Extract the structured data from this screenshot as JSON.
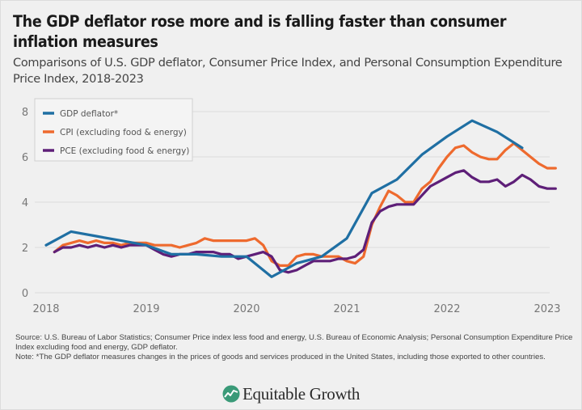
{
  "header": {
    "title": "The GDP deflator rose more and is falling faster than consumer inflation measures",
    "subtitle": "Comparisons of U.S. GDP deflator, Consumer Price Index, and Personal Consumption Expenditure Price Index, 2018-2023"
  },
  "footer": {
    "source": "Source: U.S. Bureau of Labor Statistics; Consumer Price index less food and energy, U.S. Bureau of Economic Analysis; Personal Consumption Expenditure Price Index excluding food and energy, GDP deflator.",
    "note": "Note: *The GDP deflator measures changes in the prices of goods and services produced in the United States, including those exported to other countries.",
    "logo_text": "Equitable Growth",
    "logo_color": "#3a9a78"
  },
  "chart_data": {
    "type": "line",
    "title": "The GDP deflator rose more and is falling faster than consumer inflation measures",
    "subtitle": "Comparisons of U.S. GDP deflator, Consumer Price Index, and Personal Consumption Expenditure Price Index, 2018-2023",
    "xlabel": "",
    "ylabel": "",
    "xlim": [
      2018,
      2023
    ],
    "ylim": [
      0,
      8
    ],
    "xticks": [
      2018,
      2019,
      2020,
      2021,
      2022,
      2023
    ],
    "xtick_labels": [
      "2018",
      "2019",
      "2020",
      "2021",
      "2022",
      "2023"
    ],
    "yticks": [
      0,
      2,
      4,
      6,
      8
    ],
    "ytick_labels": [
      "0",
      "2",
      "4",
      "6",
      "8"
    ],
    "grid": "horizontal",
    "legend_position": "top-left",
    "series": [
      {
        "name": "GDP deflator*",
        "color": "#1f6fa3",
        "x": [
          2018.0,
          2018.25,
          2018.5,
          2018.75,
          2019.0,
          2019.25,
          2019.5,
          2019.75,
          2020.0,
          2020.25,
          2020.5,
          2020.75,
          2021.0,
          2021.25,
          2021.5,
          2021.75,
          2022.0,
          2022.25,
          2022.5,
          2022.75
        ],
        "values": [
          2.1,
          2.7,
          2.5,
          2.3,
          2.1,
          1.7,
          1.7,
          1.6,
          1.6,
          0.7,
          1.3,
          1.6,
          2.4,
          4.4,
          5.0,
          6.1,
          6.9,
          7.6,
          7.1,
          6.4
        ]
      },
      {
        "name": "CPI (excluding food & energy)",
        "color": "#ee6a2e",
        "x": [
          2018.083,
          2018.167,
          2018.25,
          2018.333,
          2018.417,
          2018.5,
          2018.583,
          2018.667,
          2018.75,
          2018.833,
          2018.917,
          2019.0,
          2019.083,
          2019.167,
          2019.25,
          2019.333,
          2019.417,
          2019.5,
          2019.583,
          2019.667,
          2019.75,
          2019.833,
          2019.917,
          2020.0,
          2020.083,
          2020.167,
          2020.25,
          2020.333,
          2020.417,
          2020.5,
          2020.583,
          2020.667,
          2020.75,
          2020.833,
          2020.917,
          2021.0,
          2021.083,
          2021.167,
          2021.25,
          2021.333,
          2021.417,
          2021.5,
          2021.583,
          2021.667,
          2021.75,
          2021.833,
          2021.917,
          2022.0,
          2022.083,
          2022.167,
          2022.25,
          2022.333,
          2022.417,
          2022.5,
          2022.583,
          2022.667,
          2022.75,
          2022.833,
          2022.917,
          2023.0,
          2023.083
        ],
        "values": [
          1.8,
          2.1,
          2.2,
          2.3,
          2.2,
          2.3,
          2.2,
          2.2,
          2.1,
          2.2,
          2.2,
          2.2,
          2.1,
          2.1,
          2.1,
          2.0,
          2.1,
          2.2,
          2.4,
          2.3,
          2.3,
          2.3,
          2.3,
          2.3,
          2.4,
          2.1,
          1.4,
          1.2,
          1.2,
          1.6,
          1.7,
          1.7,
          1.6,
          1.6,
          1.6,
          1.4,
          1.3,
          1.6,
          3.0,
          3.8,
          4.5,
          4.3,
          4.0,
          4.0,
          4.6,
          4.9,
          5.5,
          6.0,
          6.4,
          6.5,
          6.2,
          6.0,
          5.9,
          5.9,
          6.3,
          6.6,
          6.3,
          6.0,
          5.7,
          5.5,
          5.5
        ]
      },
      {
        "name": "PCE (excluding food & energy)",
        "color": "#5e1f78",
        "x": [
          2018.083,
          2018.167,
          2018.25,
          2018.333,
          2018.417,
          2018.5,
          2018.583,
          2018.667,
          2018.75,
          2018.833,
          2018.917,
          2019.0,
          2019.083,
          2019.167,
          2019.25,
          2019.333,
          2019.417,
          2019.5,
          2019.583,
          2019.667,
          2019.75,
          2019.833,
          2019.917,
          2020.0,
          2020.083,
          2020.167,
          2020.25,
          2020.333,
          2020.417,
          2020.5,
          2020.583,
          2020.667,
          2020.75,
          2020.833,
          2020.917,
          2021.0,
          2021.083,
          2021.167,
          2021.25,
          2021.333,
          2021.417,
          2021.5,
          2021.583,
          2021.667,
          2021.75,
          2021.833,
          2021.917,
          2022.0,
          2022.083,
          2022.167,
          2022.25,
          2022.333,
          2022.417,
          2022.5,
          2022.583,
          2022.667,
          2022.75,
          2022.833,
          2022.917,
          2023.0,
          2023.083
        ],
        "values": [
          1.8,
          2.0,
          2.0,
          2.1,
          2.0,
          2.1,
          2.0,
          2.1,
          2.0,
          2.1,
          2.1,
          2.1,
          1.9,
          1.7,
          1.6,
          1.7,
          1.7,
          1.8,
          1.8,
          1.8,
          1.7,
          1.7,
          1.5,
          1.6,
          1.7,
          1.8,
          1.6,
          1.0,
          0.9,
          1.0,
          1.2,
          1.4,
          1.4,
          1.4,
          1.5,
          1.5,
          1.6,
          1.9,
          3.1,
          3.6,
          3.8,
          3.9,
          3.9,
          3.9,
          4.3,
          4.7,
          4.9,
          5.1,
          5.3,
          5.4,
          5.1,
          4.9,
          4.9,
          5.0,
          4.7,
          4.9,
          5.2,
          5.0,
          4.7,
          4.6,
          4.6
        ]
      }
    ]
  }
}
